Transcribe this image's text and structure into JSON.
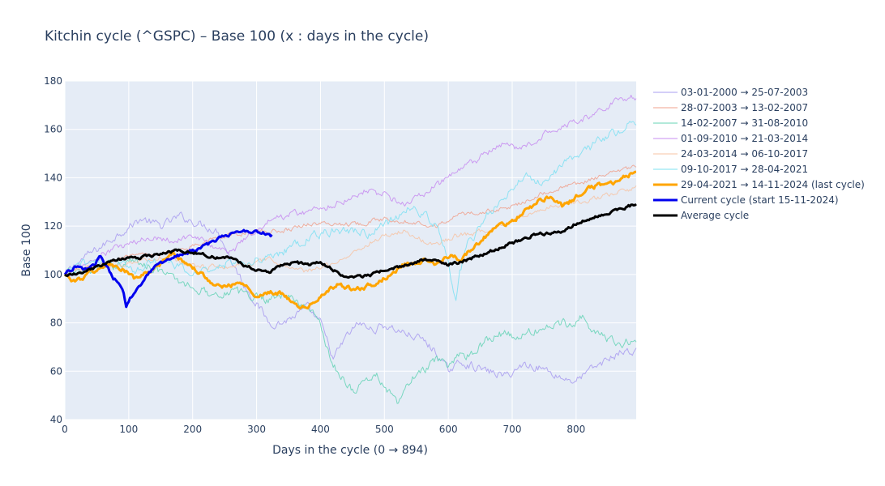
{
  "chart_data": {
    "type": "line",
    "title": "Kitchin cycle (^GSPC) – Base 100 (x : days in the cycle)",
    "xlabel": "Days in the cycle (0 → 894)",
    "ylabel": "Base 100",
    "xlim": [
      0,
      894
    ],
    "ylim": [
      40,
      180
    ],
    "xticks": [
      0,
      100,
      200,
      300,
      400,
      500,
      600,
      700,
      800
    ],
    "yticks": [
      40,
      60,
      80,
      100,
      120,
      140,
      160,
      180
    ],
    "grid": true,
    "legend_position": "right",
    "series": [
      {
        "name": "03-01-2000 → 25-07-2003",
        "color": "#a99cf0",
        "width": 1,
        "noise": 1.4,
        "points": [
          [
            0,
            100
          ],
          [
            30,
            107
          ],
          [
            60,
            112
          ],
          [
            90,
            118
          ],
          [
            120,
            123
          ],
          [
            150,
            120
          ],
          [
            180,
            124
          ],
          [
            210,
            121
          ],
          [
            240,
            118
          ],
          [
            260,
            106
          ],
          [
            280,
            96
          ],
          [
            300,
            88
          ],
          [
            320,
            80
          ],
          [
            340,
            80
          ],
          [
            380,
            86
          ],
          [
            400,
            80
          ],
          [
            420,
            65
          ],
          [
            440,
            74
          ],
          [
            460,
            80
          ],
          [
            480,
            77
          ],
          [
            500,
            79
          ],
          [
            520,
            77
          ],
          [
            540,
            75
          ],
          [
            560,
            73
          ],
          [
            580,
            68
          ],
          [
            600,
            60
          ],
          [
            620,
            64
          ],
          [
            640,
            62
          ],
          [
            660,
            60
          ],
          [
            690,
            58
          ],
          [
            720,
            63
          ],
          [
            750,
            61
          ],
          [
            780,
            57
          ],
          [
            800,
            56
          ],
          [
            820,
            60
          ],
          [
            850,
            65
          ],
          [
            870,
            68
          ],
          [
            894,
            68
          ]
        ]
      },
      {
        "name": "28-07-2003 → 13-02-2007",
        "color": "#f0a28e",
        "width": 1,
        "noise": 0.8,
        "points": [
          [
            0,
            100
          ],
          [
            40,
            103
          ],
          [
            80,
            106
          ],
          [
            120,
            108
          ],
          [
            150,
            108
          ],
          [
            180,
            110
          ],
          [
            220,
            114
          ],
          [
            260,
            116
          ],
          [
            300,
            118
          ],
          [
            340,
            118
          ],
          [
            380,
            121
          ],
          [
            420,
            121
          ],
          [
            460,
            121
          ],
          [
            500,
            123
          ],
          [
            540,
            122
          ],
          [
            580,
            120
          ],
          [
            620,
            125
          ],
          [
            660,
            126
          ],
          [
            700,
            128
          ],
          [
            740,
            133
          ],
          [
            780,
            136
          ],
          [
            820,
            139
          ],
          [
            860,
            142
          ],
          [
            894,
            145
          ]
        ]
      },
      {
        "name": "14-02-2007 → 31-08-2010",
        "color": "#66d3b6",
        "width": 1,
        "noise": 1.6,
        "points": [
          [
            0,
            100
          ],
          [
            40,
            102
          ],
          [
            80,
            104
          ],
          [
            110,
            106
          ],
          [
            140,
            103
          ],
          [
            170,
            98
          ],
          [
            200,
            95
          ],
          [
            230,
            92
          ],
          [
            260,
            93
          ],
          [
            300,
            91
          ],
          [
            320,
            90
          ],
          [
            340,
            92
          ],
          [
            360,
            89
          ],
          [
            380,
            86
          ],
          [
            400,
            81
          ],
          [
            410,
            70
          ],
          [
            420,
            62
          ],
          [
            440,
            56
          ],
          [
            450,
            52
          ],
          [
            470,
            56
          ],
          [
            490,
            58
          ],
          [
            510,
            50
          ],
          [
            520,
            46
          ],
          [
            540,
            56
          ],
          [
            560,
            60
          ],
          [
            580,
            64
          ],
          [
            600,
            63
          ],
          [
            620,
            66
          ],
          [
            640,
            68
          ],
          [
            660,
            73
          ],
          [
            680,
            76
          ],
          [
            700,
            74
          ],
          [
            730,
            76
          ],
          [
            760,
            79
          ],
          [
            790,
            80
          ],
          [
            810,
            83
          ],
          [
            830,
            76
          ],
          [
            860,
            72
          ],
          [
            894,
            72
          ]
        ]
      },
      {
        "name": "01-09-2010 → 21-03-2014",
        "color": "#c78cf0",
        "width": 1,
        "noise": 1.2,
        "points": [
          [
            0,
            100
          ],
          [
            40,
            105
          ],
          [
            80,
            111
          ],
          [
            110,
            113
          ],
          [
            140,
            116
          ],
          [
            170,
            114
          ],
          [
            200,
            116
          ],
          [
            230,
            112
          ],
          [
            260,
            109
          ],
          [
            290,
            117
          ],
          [
            320,
            122
          ],
          [
            350,
            125
          ],
          [
            380,
            126
          ],
          [
            410,
            128
          ],
          [
            440,
            131
          ],
          [
            470,
            135
          ],
          [
            500,
            133
          ],
          [
            530,
            129
          ],
          [
            560,
            133
          ],
          [
            600,
            140
          ],
          [
            630,
            145
          ],
          [
            660,
            150
          ],
          [
            690,
            154
          ],
          [
            720,
            152
          ],
          [
            760,
            160
          ],
          [
            790,
            163
          ],
          [
            820,
            165
          ],
          [
            850,
            170
          ],
          [
            870,
            173
          ],
          [
            894,
            173
          ]
        ]
      },
      {
        "name": "24-03-2014 → 06-10-2017",
        "color": "#f7c3a3",
        "width": 1,
        "noise": 0.9,
        "points": [
          [
            0,
            100
          ],
          [
            40,
            103
          ],
          [
            80,
            104
          ],
          [
            120,
            106
          ],
          [
            160,
            107
          ],
          [
            200,
            104
          ],
          [
            240,
            103
          ],
          [
            280,
            104
          ],
          [
            320,
            106
          ],
          [
            350,
            103
          ],
          [
            380,
            101
          ],
          [
            410,
            104
          ],
          [
            440,
            107
          ],
          [
            470,
            112
          ],
          [
            500,
            116
          ],
          [
            530,
            118
          ],
          [
            560,
            114
          ],
          [
            580,
            112
          ],
          [
            610,
            116
          ],
          [
            640,
            117
          ],
          [
            680,
            120
          ],
          [
            720,
            125
          ],
          [
            760,
            128
          ],
          [
            800,
            130
          ],
          [
            840,
            132
          ],
          [
            870,
            134
          ],
          [
            894,
            136
          ]
        ]
      },
      {
        "name": "09-10-2017 → 28-04-2021",
        "color": "#7ee0f2",
        "width": 1,
        "noise": 1.5,
        "points": [
          [
            0,
            100
          ],
          [
            40,
            106
          ],
          [
            80,
            104
          ],
          [
            110,
            102
          ],
          [
            140,
            106
          ],
          [
            170,
            104
          ],
          [
            200,
            100
          ],
          [
            230,
            103
          ],
          [
            260,
            105
          ],
          [
            300,
            106
          ],
          [
            330,
            108
          ],
          [
            360,
            112
          ],
          [
            390,
            116
          ],
          [
            420,
            118
          ],
          [
            450,
            118
          ],
          [
            480,
            117
          ],
          [
            510,
            122
          ],
          [
            540,
            128
          ],
          [
            560,
            125
          ],
          [
            580,
            120
          ],
          [
            595,
            112
          ],
          [
            605,
            98
          ],
          [
            612,
            90
          ],
          [
            618,
            100
          ],
          [
            630,
            112
          ],
          [
            660,
            124
          ],
          [
            690,
            132
          ],
          [
            720,
            141
          ],
          [
            750,
            138
          ],
          [
            780,
            146
          ],
          [
            810,
            150
          ],
          [
            840,
            156
          ],
          [
            870,
            160
          ],
          [
            894,
            164
          ]
        ]
      },
      {
        "name": "29-04-2021 → 14-11-2024 (last cycle)",
        "color": "#ffa500",
        "width": 3,
        "noise": 0.8,
        "points": [
          [
            0,
            100
          ],
          [
            15,
            97
          ],
          [
            30,
            99
          ],
          [
            50,
            102
          ],
          [
            70,
            104
          ],
          [
            90,
            102
          ],
          [
            110,
            98
          ],
          [
            130,
            101
          ],
          [
            150,
            104
          ],
          [
            170,
            108
          ],
          [
            190,
            105
          ],
          [
            210,
            101
          ],
          [
            230,
            97
          ],
          [
            250,
            95
          ],
          [
            270,
            96
          ],
          [
            290,
            94
          ],
          [
            300,
            91
          ],
          [
            320,
            93
          ],
          [
            340,
            92
          ],
          [
            360,
            88
          ],
          [
            370,
            86
          ],
          [
            390,
            88
          ],
          [
            410,
            93
          ],
          [
            430,
            96
          ],
          [
            450,
            94
          ],
          [
            470,
            95
          ],
          [
            490,
            97
          ],
          [
            510,
            100
          ],
          [
            530,
            104
          ],
          [
            560,
            106
          ],
          [
            580,
            104
          ],
          [
            600,
            108
          ],
          [
            620,
            106
          ],
          [
            640,
            112
          ],
          [
            660,
            116
          ],
          [
            680,
            120
          ],
          [
            700,
            122
          ],
          [
            720,
            126
          ],
          [
            740,
            130
          ],
          [
            760,
            132
          ],
          [
            780,
            128
          ],
          [
            800,
            132
          ],
          [
            820,
            136
          ],
          [
            840,
            137
          ],
          [
            860,
            138
          ],
          [
            880,
            141
          ],
          [
            894,
            143
          ]
        ]
      },
      {
        "name": "Current cycle (start 15-11-2024)",
        "color": "#0000ee",
        "width": 3,
        "noise": 0.6,
        "points": [
          [
            0,
            100
          ],
          [
            15,
            103
          ],
          [
            30,
            102
          ],
          [
            45,
            104
          ],
          [
            55,
            107
          ],
          [
            65,
            103
          ],
          [
            75,
            99
          ],
          [
            85,
            96
          ],
          [
            92,
            92
          ],
          [
            96,
            86
          ],
          [
            102,
            90
          ],
          [
            110,
            92
          ],
          [
            120,
            96
          ],
          [
            130,
            100
          ],
          [
            145,
            104
          ],
          [
            160,
            106
          ],
          [
            175,
            108
          ],
          [
            190,
            109
          ],
          [
            205,
            110
          ],
          [
            220,
            112
          ],
          [
            235,
            114
          ],
          [
            250,
            116
          ],
          [
            265,
            117
          ],
          [
            280,
            118
          ],
          [
            300,
            118
          ],
          [
            315,
            117
          ],
          [
            325,
            116
          ]
        ]
      },
      {
        "name": "Average cycle",
        "color": "#000000",
        "width": 3,
        "noise": 0.5,
        "points": [
          [
            0,
            100
          ],
          [
            20,
            100
          ],
          [
            40,
            102
          ],
          [
            60,
            104
          ],
          [
            80,
            106
          ],
          [
            100,
            107
          ],
          [
            120,
            107
          ],
          [
            140,
            108
          ],
          [
            160,
            109
          ],
          [
            180,
            110
          ],
          [
            200,
            109
          ],
          [
            220,
            108
          ],
          [
            240,
            107
          ],
          [
            260,
            107
          ],
          [
            280,
            104
          ],
          [
            300,
            102
          ],
          [
            320,
            101
          ],
          [
            340,
            104
          ],
          [
            360,
            105
          ],
          [
            380,
            104
          ],
          [
            400,
            105
          ],
          [
            420,
            102
          ],
          [
            440,
            99
          ],
          [
            460,
            99
          ],
          [
            480,
            100
          ],
          [
            500,
            102
          ],
          [
            520,
            103
          ],
          [
            540,
            104
          ],
          [
            560,
            106
          ],
          [
            580,
            106
          ],
          [
            600,
            104
          ],
          [
            620,
            105
          ],
          [
            640,
            107
          ],
          [
            660,
            109
          ],
          [
            680,
            111
          ],
          [
            700,
            113
          ],
          [
            720,
            115
          ],
          [
            740,
            117
          ],
          [
            760,
            117
          ],
          [
            780,
            118
          ],
          [
            800,
            121
          ],
          [
            820,
            123
          ],
          [
            840,
            125
          ],
          [
            860,
            126
          ],
          [
            880,
            128
          ],
          [
            894,
            129
          ]
        ]
      }
    ]
  }
}
